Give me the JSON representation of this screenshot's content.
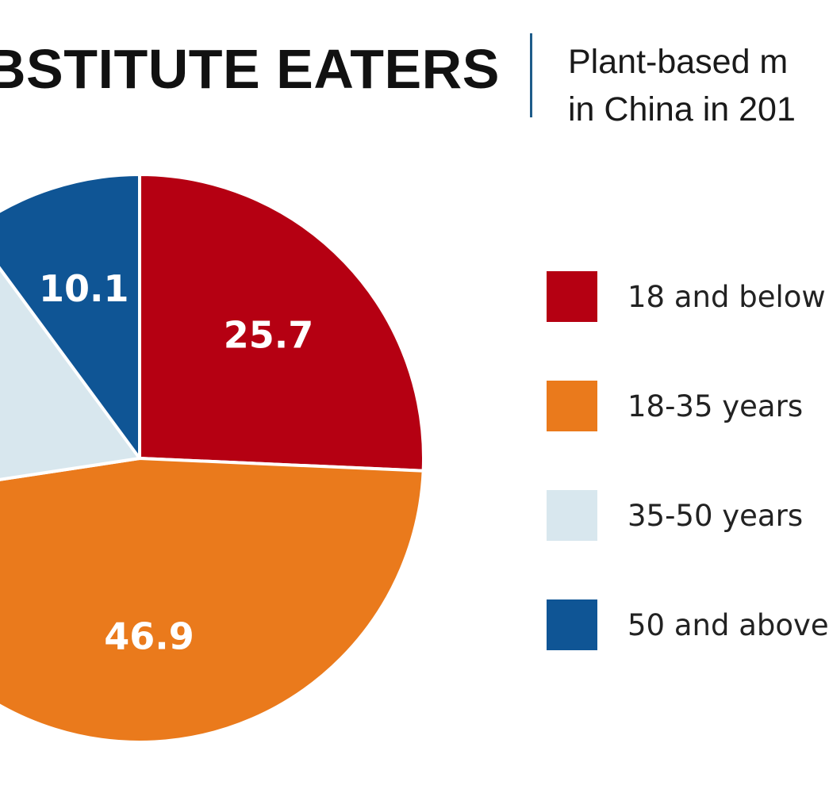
{
  "header": {
    "title": "BSTITUTE EATERS",
    "subtitle_line1": "Plant-based m",
    "subtitle_line2": "in China in 201"
  },
  "colors": {
    "dark_red": "#b50012",
    "orange": "#ea7a1c",
    "light_blue": "#d8e7ee",
    "dark_blue": "#0f5595",
    "divider": "#1e5c8a"
  },
  "chart_data": {
    "type": "pie",
    "title": "BSTITUTE EATERS",
    "slices": [
      {
        "label": "18 and below",
        "value": 25.7,
        "display": "25.7",
        "color": "#b50012",
        "show_label": true
      },
      {
        "label": "18-35 years",
        "value": 46.9,
        "display": "46.9",
        "color": "#ea7a1c",
        "show_label": true
      },
      {
        "label": "35-50 years",
        "value": 17.3,
        "display": "",
        "color": "#d8e7ee",
        "show_label": false
      },
      {
        "label": "50 and above",
        "value": 10.1,
        "display": "10.1",
        "color": "#0f5595",
        "show_label": true
      }
    ],
    "start": "12 o'clock",
    "direction": "clockwise",
    "legend_position": "right"
  },
  "legend": {
    "items": [
      {
        "label": "18 and below",
        "color": "#b50012"
      },
      {
        "label": "18-35 years",
        "color": "#ea7a1c"
      },
      {
        "label": "35-50 years",
        "color": "#d8e7ee"
      },
      {
        "label": "50 and above",
        "color": "#0f5595"
      }
    ]
  }
}
